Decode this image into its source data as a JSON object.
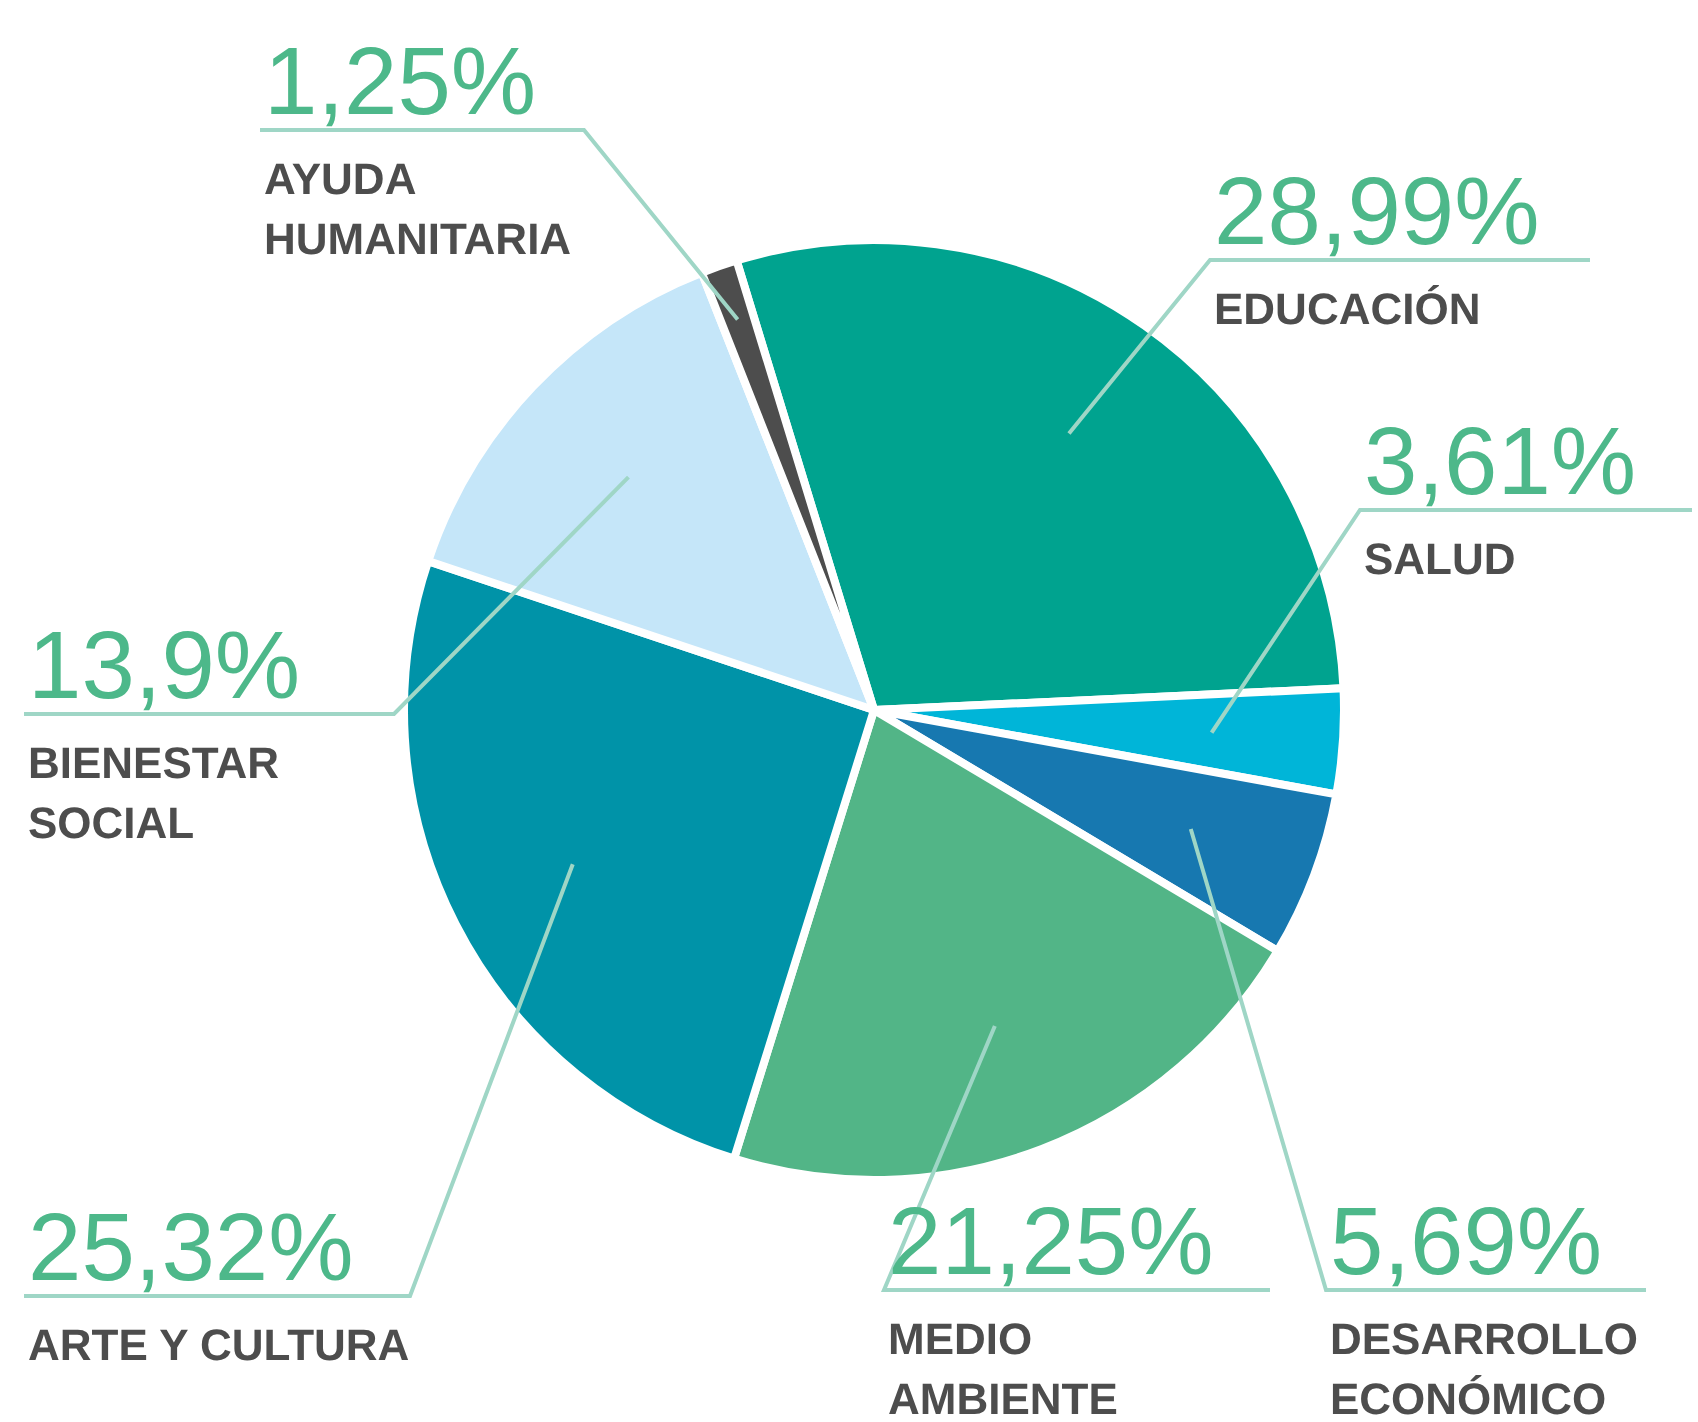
{
  "chart_data": {
    "type": "pie",
    "categories": [
      "EDUCACIÓN",
      "SALUD",
      "DESARROLLO ECONÓMICO",
      "MEDIO AMBIENTE",
      "ARTE Y CULTURA",
      "BIENESTAR SOCIAL",
      "AYUDA HUMANITARIA"
    ],
    "values": [
      28.99,
      3.61,
      5.69,
      21.25,
      25.32,
      13.9,
      1.25
    ],
    "colors": [
      "#00a38f",
      "#00b5d8",
      "#1778b0",
      "#52b587",
      "#0093a8",
      "#c5e6f9",
      "#4d4d4d"
    ],
    "value_labels": [
      "28,99%",
      "3,61%",
      "5,69%",
      "21,25%",
      "25,32%",
      "13,9%",
      "1,25%"
    ]
  }
}
